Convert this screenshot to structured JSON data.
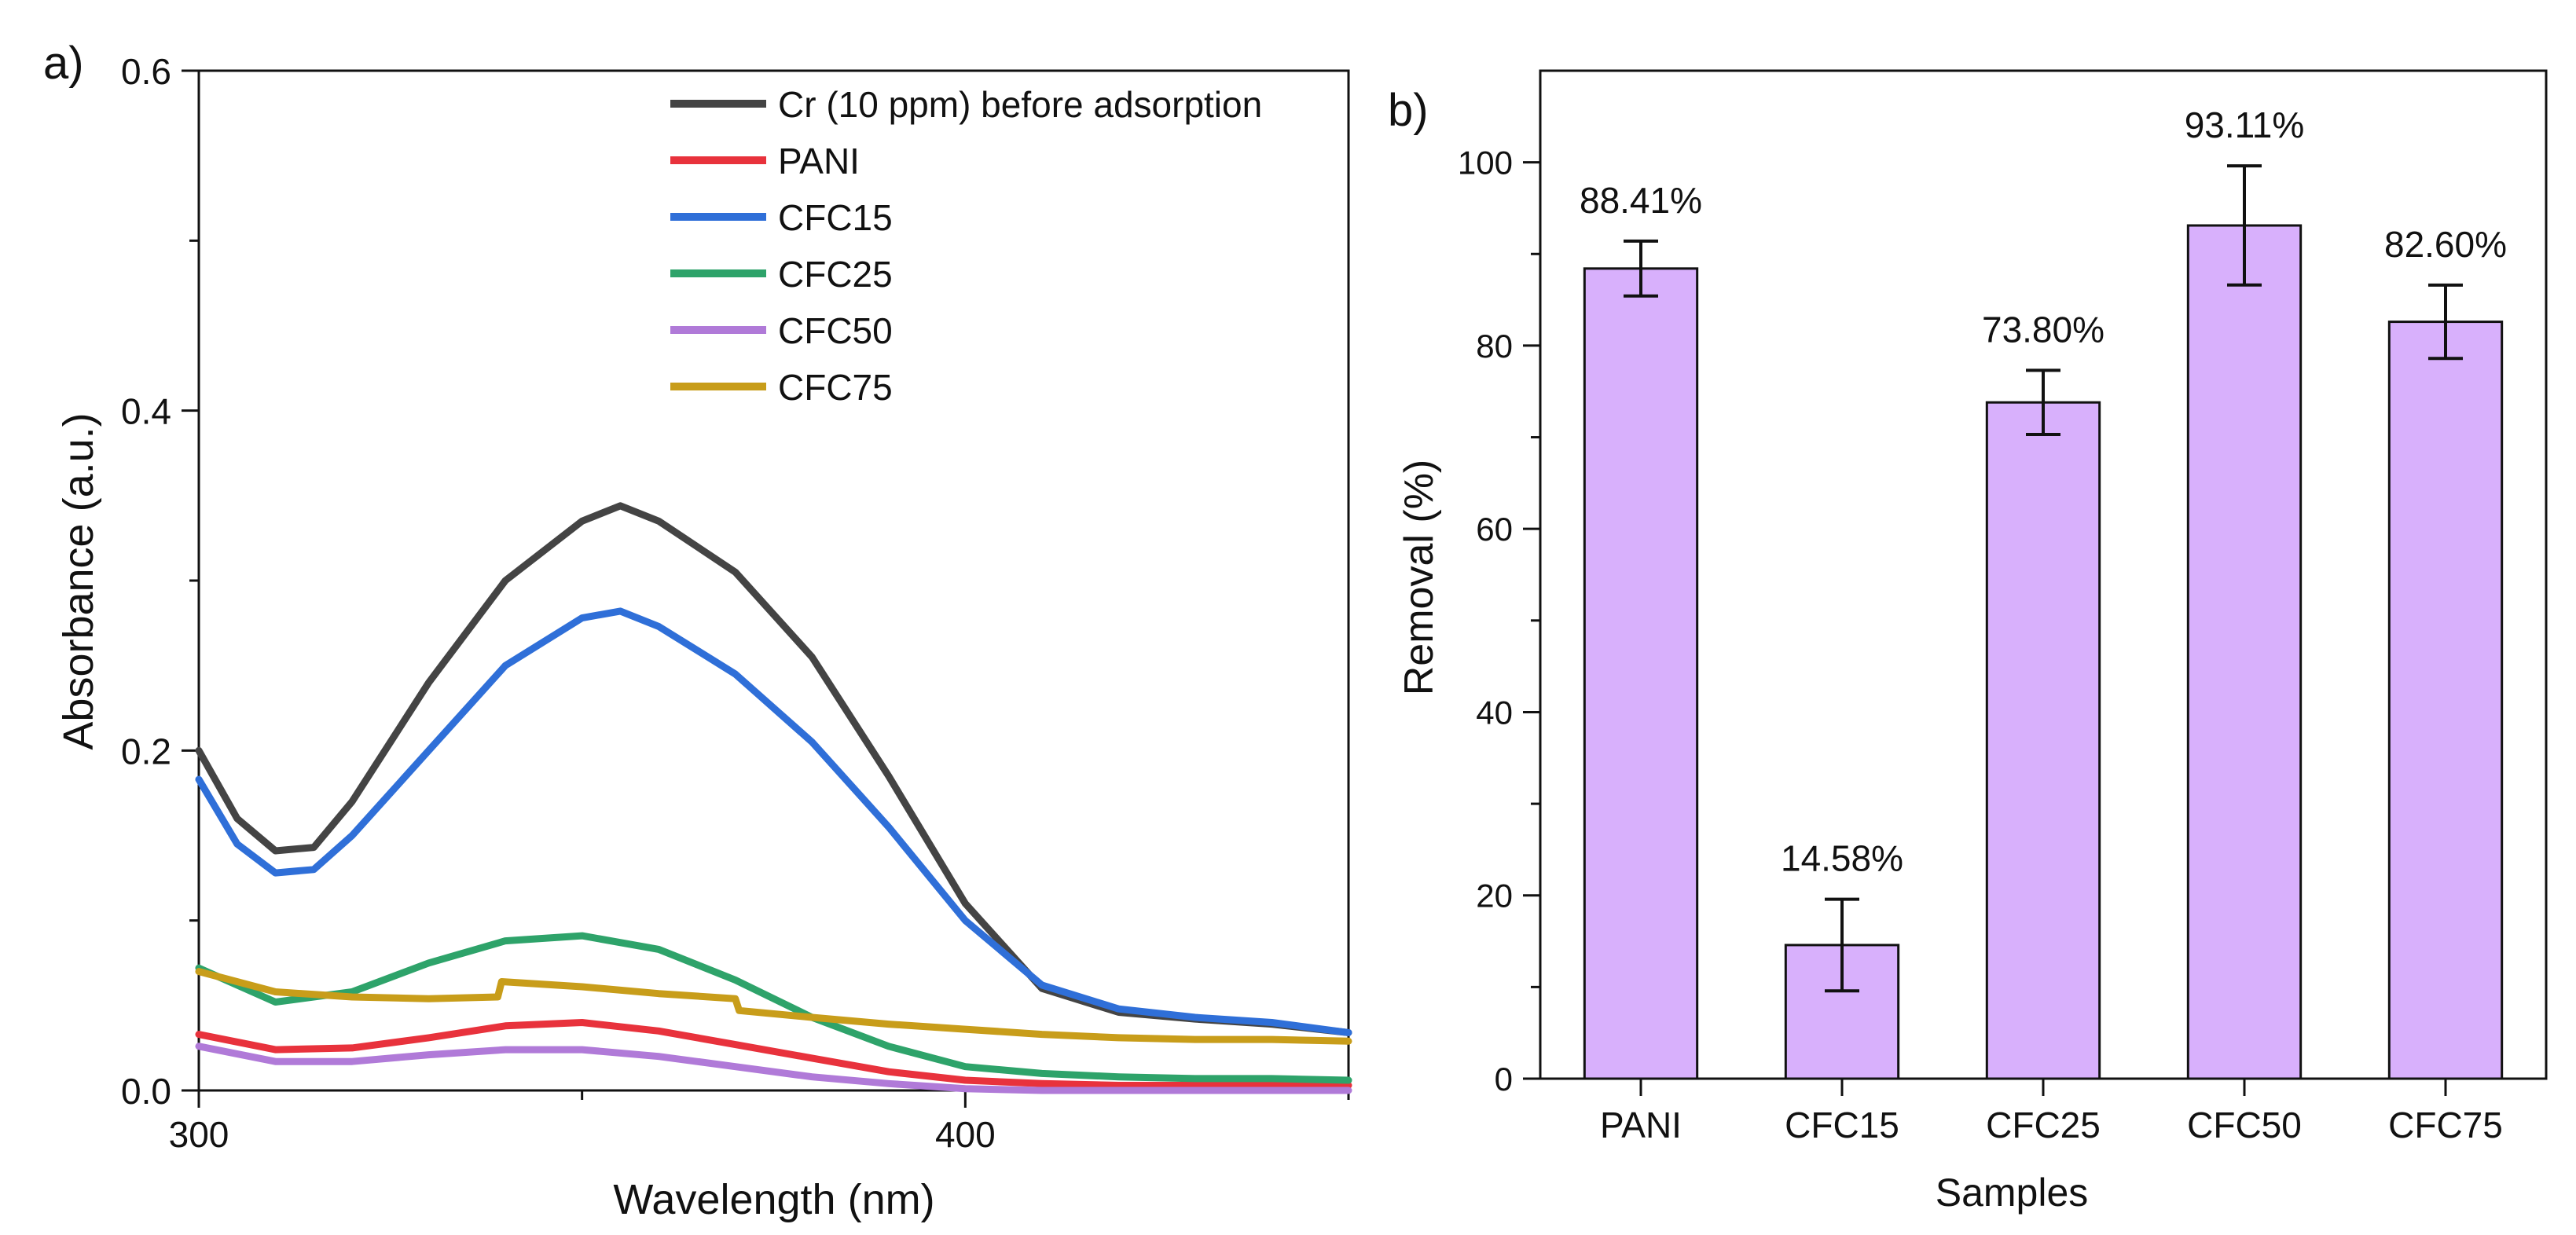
{
  "chart_data": [
    {
      "panel_label": "a)",
      "type": "line",
      "xlabel": "Wavelength (nm)",
      "ylabel": "Absorbance (a.u.)",
      "xlim": [
        300,
        450
      ],
      "ylim": [
        0,
        0.6
      ],
      "xticks": [
        "300",
        "400"
      ],
      "yticks": [
        "0.0",
        "0.2",
        "0.4",
        "0.6"
      ],
      "legend_position": "top-right",
      "series": [
        {
          "name": "Cr (10 ppm) before adsorption",
          "color": "#444444",
          "x": [
            300,
            305,
            310,
            315,
            320,
            330,
            340,
            350,
            355,
            360,
            370,
            380,
            390,
            400,
            410,
            420,
            430,
            440,
            450
          ],
          "y": [
            0.2,
            0.16,
            0.141,
            0.143,
            0.17,
            0.24,
            0.3,
            0.335,
            0.344,
            0.335,
            0.305,
            0.255,
            0.185,
            0.11,
            0.06,
            0.046,
            0.042,
            0.039,
            0.034
          ]
        },
        {
          "name": "PANI",
          "color": "#e8323c",
          "x": [
            300,
            310,
            320,
            330,
            340,
            350,
            360,
            370,
            380,
            390,
            400,
            410,
            420,
            430,
            440,
            450
          ],
          "y": [
            0.033,
            0.024,
            0.025,
            0.031,
            0.038,
            0.04,
            0.035,
            0.027,
            0.019,
            0.011,
            0.006,
            0.004,
            0.003,
            0.003,
            0.003,
            0.003
          ]
        },
        {
          "name": "CFC15",
          "color": "#2f6fd8",
          "x": [
            300,
            305,
            310,
            315,
            320,
            330,
            340,
            350,
            355,
            360,
            370,
            380,
            390,
            400,
            410,
            420,
            430,
            440,
            450
          ],
          "y": [
            0.183,
            0.145,
            0.128,
            0.13,
            0.15,
            0.2,
            0.25,
            0.278,
            0.282,
            0.273,
            0.245,
            0.205,
            0.155,
            0.1,
            0.062,
            0.048,
            0.043,
            0.04,
            0.034
          ]
        },
        {
          "name": "CFC25",
          "color": "#2ea36a",
          "x": [
            300,
            310,
            320,
            330,
            340,
            350,
            360,
            370,
            380,
            390,
            400,
            410,
            420,
            430,
            440,
            450
          ],
          "y": [
            0.072,
            0.052,
            0.058,
            0.075,
            0.088,
            0.091,
            0.083,
            0.065,
            0.043,
            0.026,
            0.014,
            0.01,
            0.008,
            0.007,
            0.007,
            0.006
          ]
        },
        {
          "name": "CFC50",
          "color": "#b07ad8",
          "x": [
            300,
            310,
            320,
            330,
            340,
            350,
            360,
            370,
            380,
            390,
            400,
            410,
            420,
            430,
            440,
            450
          ],
          "y": [
            0.026,
            0.017,
            0.017,
            0.021,
            0.024,
            0.024,
            0.02,
            0.014,
            0.008,
            0.004,
            0.001,
            0.0,
            0.0,
            0.0,
            0.0,
            0.0
          ]
        },
        {
          "name": "CFC75",
          "color": "#c89d1a",
          "x": [
            300,
            310,
            320,
            330,
            339,
            339.5,
            350,
            360,
            370,
            370.5,
            380,
            390,
            400,
            410,
            420,
            430,
            440,
            450
          ],
          "y": [
            0.07,
            0.058,
            0.055,
            0.054,
            0.055,
            0.064,
            0.061,
            0.057,
            0.054,
            0.047,
            0.043,
            0.039,
            0.036,
            0.033,
            0.031,
            0.03,
            0.03,
            0.029
          ]
        }
      ]
    },
    {
      "panel_label": "b)",
      "type": "bar",
      "xlabel": "Samples",
      "ylabel": "Removal (%)",
      "ylim": [
        0,
        110
      ],
      "yticks": [
        "0",
        "20",
        "40",
        "60",
        "80",
        "100"
      ],
      "bar_color": "#d8b0fc",
      "categories": [
        "PANI",
        "CFC15",
        "CFC25",
        "CFC50",
        "CFC75"
      ],
      "values": [
        88.41,
        14.58,
        73.8,
        93.11,
        82.6
      ],
      "errors": [
        3.0,
        5.0,
        3.5,
        6.5,
        4.0
      ],
      "data_labels": [
        "88.41%",
        "14.58%",
        "73.80%",
        "93.11%",
        "82.60%"
      ]
    }
  ]
}
